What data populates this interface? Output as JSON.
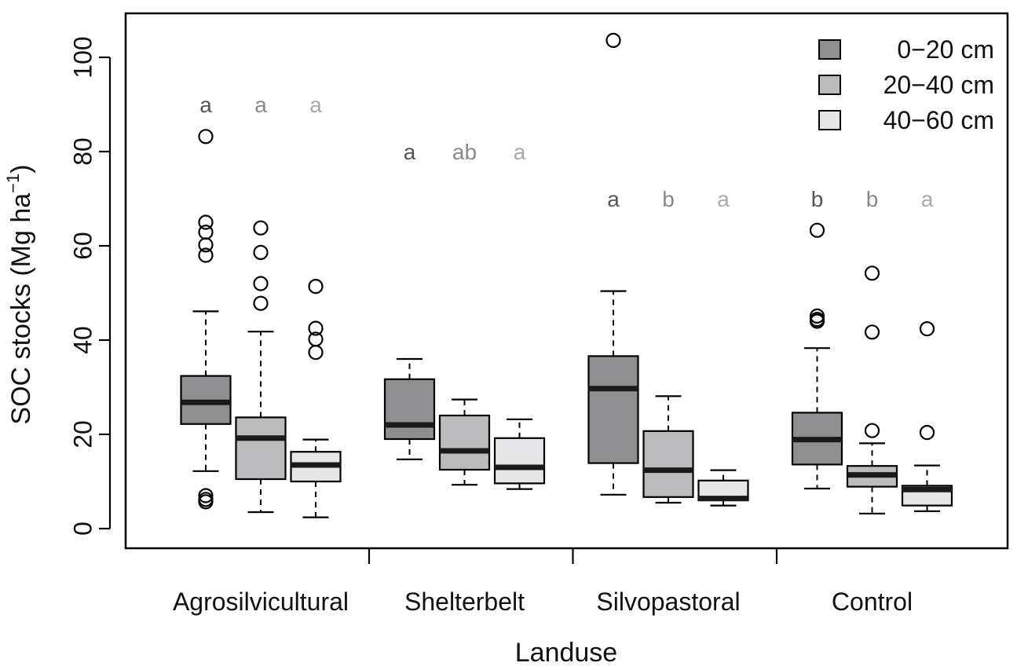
{
  "chart_data": {
    "type": "boxplot",
    "title": "",
    "xlabel": "Landuse",
    "ylabel_main": "SOC stocks (Mg ha",
    "ylabel_sup": "−1",
    "ylabel_close": ")",
    "ylim": [
      -4,
      109
    ],
    "yticks": [
      "0",
      "20",
      "40",
      "60",
      "80",
      "100"
    ],
    "ytick_values": [
      0,
      20,
      40,
      60,
      80,
      100
    ],
    "grid": false,
    "legend_position": "top-right",
    "categories": [
      "Agrosilvicultural",
      "Shelterbelt",
      "Silvopastoral",
      "Control"
    ],
    "series": [
      {
        "name": "0−20 cm",
        "color": "#8f8f92",
        "letter_color": "#555555"
      },
      {
        "name": "20−40 cm",
        "color": "#bcbcbf",
        "letter_color": "#8a8a8a"
      },
      {
        "name": "40−60 cm",
        "color": "#e6e6e8",
        "letter_color": "#a9a9a9"
      }
    ],
    "groups": [
      {
        "category": "Agrosilvicultural",
        "letter_y": 90,
        "boxes": [
          {
            "series": "0−20 cm",
            "whisker_low": 12.2,
            "q1": 22.2,
            "median": 26.8,
            "q3": 32.4,
            "whisker_high": 46.1,
            "outliers": [
              83.2,
              65,
              62.9,
              60.2,
              58,
              7,
              6.2,
              5.7
            ],
            "letter": "a"
          },
          {
            "series": "20−40 cm",
            "whisker_low": 3.5,
            "q1": 10.5,
            "median": 19.2,
            "q3": 23.6,
            "whisker_high": 41.8,
            "outliers": [
              63.8,
              58.6,
              52,
              47.8
            ],
            "letter": "a"
          },
          {
            "series": "40−60 cm",
            "whisker_low": 2.4,
            "q1": 10,
            "median": 13.5,
            "q3": 16.3,
            "whisker_high": 18.9,
            "outliers": [
              51.4,
              42.5,
              40.2,
              37.4
            ],
            "letter": "a"
          }
        ]
      },
      {
        "category": "Shelterbelt",
        "letter_y": 80,
        "boxes": [
          {
            "series": "0−20 cm",
            "whisker_low": 14.7,
            "q1": 19,
            "median": 22,
            "q3": 31.7,
            "whisker_high": 36,
            "outliers": [],
            "letter": "a"
          },
          {
            "series": "20−40 cm",
            "whisker_low": 9.3,
            "q1": 12.5,
            "median": 16.5,
            "q3": 24,
            "whisker_high": 27.4,
            "outliers": [],
            "letter": "ab"
          },
          {
            "series": "40−60 cm",
            "whisker_low": 8.4,
            "q1": 9.6,
            "median": 13,
            "q3": 19.2,
            "whisker_high": 23.2,
            "outliers": [],
            "letter": "a"
          }
        ]
      },
      {
        "category": "Silvopastoral",
        "letter_y": 70,
        "boxes": [
          {
            "series": "0−20 cm",
            "whisker_low": 7.2,
            "q1": 13.9,
            "median": 29.7,
            "q3": 36.6,
            "whisker_high": 50.4,
            "outliers": [
              103.6
            ],
            "letter": "a"
          },
          {
            "series": "20−40 cm",
            "whisker_low": 5.5,
            "q1": 6.7,
            "median": 12.4,
            "q3": 20.7,
            "whisker_high": 28.1,
            "outliers": [],
            "letter": "b"
          },
          {
            "series": "40−60 cm",
            "whisker_low": 4.9,
            "q1": 6,
            "median": 6.4,
            "q3": 10.2,
            "whisker_high": 12.4,
            "outliers": [],
            "letter": "a"
          }
        ]
      },
      {
        "category": "Control",
        "letter_y": 70,
        "boxes": [
          {
            "series": "0−20 cm",
            "whisker_low": 8.5,
            "q1": 13.6,
            "median": 18.9,
            "q3": 24.6,
            "whisker_high": 38.3,
            "outliers": [
              63.3,
              45.1,
              44.4,
              44
            ],
            "letter": "b"
          },
          {
            "series": "20−40 cm",
            "whisker_low": 3.2,
            "q1": 8.9,
            "median": 11.4,
            "q3": 13.3,
            "whisker_high": 18.1,
            "outliers": [
              54.2,
              41.7,
              20.8
            ],
            "letter": "b"
          },
          {
            "series": "40−60 cm",
            "whisker_low": 3.7,
            "q1": 4.9,
            "median": 8.3,
            "q3": 9.1,
            "whisker_high": 13.4,
            "outliers": [
              42.4,
              20.4
            ],
            "letter": "a"
          }
        ]
      }
    ]
  }
}
